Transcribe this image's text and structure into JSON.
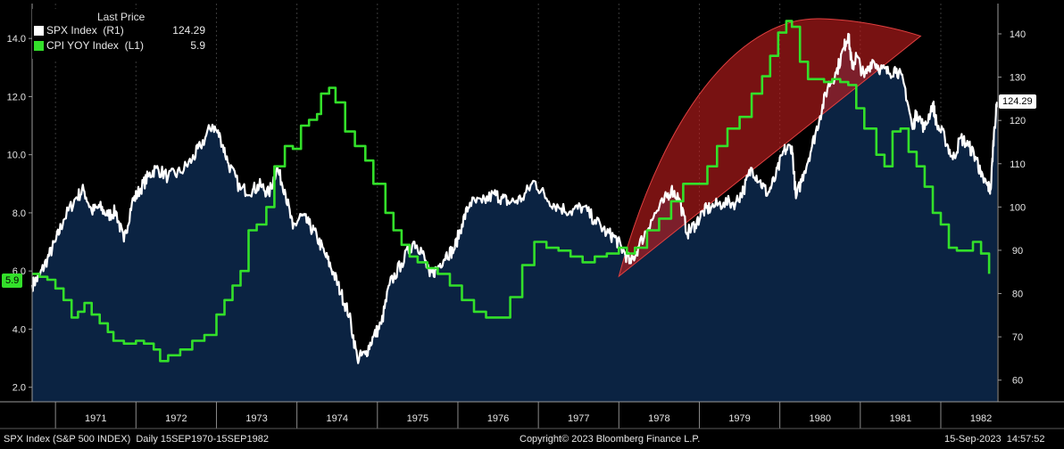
{
  "legend": {
    "header": "Last Price",
    "series": [
      {
        "name": "SPX Index  (R1)",
        "value": "124.29",
        "color": "#ffffff"
      },
      {
        "name": "CPI YOY Index  (L1)",
        "value": "5.9",
        "color": "#33e02a"
      }
    ]
  },
  "tags": {
    "left": "5.9",
    "right": "124.29"
  },
  "footer": {
    "left": "SPX Index (S&P 500 INDEX)  Daily 15SEP1970-15SEP1982",
    "center": "Copyright© 2023 Bloomberg Finance L.P.",
    "right": "15-Sep-2023  14:57:52"
  },
  "colors": {
    "background": "#000000",
    "area_fill": "#0b2342",
    "spx_line": "#ffffff",
    "cpi_line": "#33e02a",
    "highlight": "#c21d1d"
  },
  "chart_data": {
    "type": "line",
    "x_ticks": [
      "1971",
      "1972",
      "1973",
      "1974",
      "1975",
      "1976",
      "1977",
      "1978",
      "1979",
      "1980",
      "1981",
      "1982"
    ],
    "x_range": [
      1970.71,
      1982.71
    ],
    "left_axis": {
      "ticks": [
        "2.0",
        "4.0",
        "6.0",
        "8.0",
        "10.0",
        "12.0",
        "14.0"
      ],
      "range": [
        1.5,
        15.2
      ]
    },
    "right_axis": {
      "ticks": [
        "60",
        "70",
        "80",
        "90",
        "100",
        "110",
        "120",
        "130",
        "140"
      ],
      "range": [
        55,
        147
      ]
    },
    "series": [
      {
        "name": "SPX Index  (R1)",
        "axis": "right",
        "style": "line-area",
        "points": [
          [
            1970.71,
            82
          ],
          [
            1970.8,
            84
          ],
          [
            1970.9,
            88
          ],
          [
            1971.0,
            92
          ],
          [
            1971.1,
            97
          ],
          [
            1971.25,
            102
          ],
          [
            1971.35,
            104
          ],
          [
            1971.45,
            99
          ],
          [
            1971.55,
            100
          ],
          [
            1971.65,
            98
          ],
          [
            1971.75,
            99
          ],
          [
            1971.85,
            92
          ],
          [
            1971.95,
            101
          ],
          [
            1972.05,
            104
          ],
          [
            1972.15,
            107
          ],
          [
            1972.25,
            109
          ],
          [
            1972.4,
            107
          ],
          [
            1972.55,
            108
          ],
          [
            1972.7,
            111
          ],
          [
            1972.8,
            114
          ],
          [
            1972.95,
            119
          ],
          [
            1973.05,
            116
          ],
          [
            1973.15,
            110
          ],
          [
            1973.3,
            104
          ],
          [
            1973.45,
            104
          ],
          [
            1973.55,
            105
          ],
          [
            1973.65,
            103
          ],
          [
            1973.75,
            109
          ],
          [
            1973.85,
            104
          ],
          [
            1973.95,
            95
          ],
          [
            1974.05,
            98
          ],
          [
            1974.15,
            96
          ],
          [
            1974.25,
            93
          ],
          [
            1974.35,
            89
          ],
          [
            1974.45,
            85
          ],
          [
            1974.55,
            80
          ],
          [
            1974.65,
            75
          ],
          [
            1974.75,
            65
          ],
          [
            1974.85,
            66
          ],
          [
            1974.95,
            70
          ],
          [
            1975.05,
            73
          ],
          [
            1975.15,
            82
          ],
          [
            1975.3,
            87
          ],
          [
            1975.45,
            92
          ],
          [
            1975.55,
            90
          ],
          [
            1975.65,
            84
          ],
          [
            1975.75,
            86
          ],
          [
            1975.85,
            89
          ],
          [
            1975.95,
            90
          ],
          [
            1976.05,
            96
          ],
          [
            1976.15,
            101
          ],
          [
            1976.3,
            101
          ],
          [
            1976.45,
            103
          ],
          [
            1976.55,
            102
          ],
          [
            1976.65,
            101
          ],
          [
            1976.8,
            102
          ],
          [
            1976.95,
            106
          ],
          [
            1977.1,
            102
          ],
          [
            1977.25,
            100
          ],
          [
            1977.4,
            99
          ],
          [
            1977.55,
            100
          ],
          [
            1977.7,
            97
          ],
          [
            1977.85,
            94
          ],
          [
            1977.95,
            93
          ],
          [
            1978.05,
            90
          ],
          [
            1978.15,
            87
          ],
          [
            1978.25,
            91
          ],
          [
            1978.4,
            97
          ],
          [
            1978.55,
            101
          ],
          [
            1978.65,
            104
          ],
          [
            1978.75,
            102
          ],
          [
            1978.85,
            94
          ],
          [
            1978.95,
            96
          ],
          [
            1979.05,
            99
          ],
          [
            1979.15,
            100
          ],
          [
            1979.3,
            101
          ],
          [
            1979.45,
            101
          ],
          [
            1979.55,
            104
          ],
          [
            1979.65,
            109
          ],
          [
            1979.75,
            106
          ],
          [
            1979.85,
            103
          ],
          [
            1979.95,
            107
          ],
          [
            1980.05,
            113
          ],
          [
            1980.15,
            114
          ],
          [
            1980.2,
            102
          ],
          [
            1980.3,
            108
          ],
          [
            1980.4,
            114
          ],
          [
            1980.5,
            121
          ],
          [
            1980.6,
            128
          ],
          [
            1980.7,
            131
          ],
          [
            1980.8,
            137
          ],
          [
            1980.85,
            140
          ],
          [
            1980.9,
            132
          ],
          [
            1980.95,
            135
          ],
          [
            1981.05,
            130
          ],
          [
            1981.15,
            134
          ],
          [
            1981.25,
            132
          ],
          [
            1981.35,
            131
          ],
          [
            1981.45,
            132
          ],
          [
            1981.55,
            128
          ],
          [
            1981.65,
            118
          ],
          [
            1981.7,
            122
          ],
          [
            1981.8,
            118
          ],
          [
            1981.9,
            124
          ],
          [
            1981.95,
            119
          ],
          [
            1982.05,
            116
          ],
          [
            1982.15,
            111
          ],
          [
            1982.25,
            116
          ],
          [
            1982.35,
            114
          ],
          [
            1982.45,
            111
          ],
          [
            1982.5,
            107
          ],
          [
            1982.58,
            105
          ],
          [
            1982.62,
            104
          ],
          [
            1982.66,
            117
          ],
          [
            1982.7,
            124.29
          ]
        ]
      },
      {
        "name": "CPI YOY Index  (L1)",
        "axis": "left",
        "style": "step",
        "points": [
          [
            1970.71,
            5.9
          ],
          [
            1970.8,
            5.8
          ],
          [
            1970.9,
            5.7
          ],
          [
            1971.0,
            5.4
          ],
          [
            1971.1,
            5.0
          ],
          [
            1971.2,
            4.4
          ],
          [
            1971.28,
            4.6
          ],
          [
            1971.36,
            4.9
          ],
          [
            1971.45,
            4.5
          ],
          [
            1971.55,
            4.2
          ],
          [
            1971.65,
            3.9
          ],
          [
            1971.72,
            3.6
          ],
          [
            1971.85,
            3.5
          ],
          [
            1972.0,
            3.6
          ],
          [
            1972.1,
            3.5
          ],
          [
            1972.22,
            3.3
          ],
          [
            1972.3,
            2.9
          ],
          [
            1972.4,
            3.1
          ],
          [
            1972.55,
            3.3
          ],
          [
            1972.7,
            3.6
          ],
          [
            1972.85,
            3.8
          ],
          [
            1973.0,
            4.5
          ],
          [
            1973.1,
            5.0
          ],
          [
            1973.2,
            5.5
          ],
          [
            1973.3,
            6.0
          ],
          [
            1973.4,
            7.4
          ],
          [
            1973.5,
            7.6
          ],
          [
            1973.62,
            8.2
          ],
          [
            1973.72,
            9.6
          ],
          [
            1973.85,
            10.3
          ],
          [
            1973.95,
            10.2
          ],
          [
            1974.05,
            11.0
          ],
          [
            1974.15,
            11.2
          ],
          [
            1974.25,
            11.4
          ],
          [
            1974.3,
            12.1
          ],
          [
            1974.4,
            12.3
          ],
          [
            1974.48,
            11.8
          ],
          [
            1974.6,
            10.8
          ],
          [
            1974.72,
            10.3
          ],
          [
            1974.85,
            9.8
          ],
          [
            1974.95,
            9.0
          ],
          [
            1975.1,
            8.0
          ],
          [
            1975.2,
            7.4
          ],
          [
            1975.3,
            6.9
          ],
          [
            1975.4,
            6.5
          ],
          [
            1975.5,
            6.3
          ],
          [
            1975.62,
            6.1
          ],
          [
            1975.75,
            5.9
          ],
          [
            1975.9,
            5.5
          ],
          [
            1976.05,
            5.0
          ],
          [
            1976.2,
            4.6
          ],
          [
            1976.35,
            4.4
          ],
          [
            1976.5,
            4.4
          ],
          [
            1976.65,
            5.1
          ],
          [
            1976.8,
            6.2
          ],
          [
            1976.95,
            7.0
          ],
          [
            1977.1,
            6.8
          ],
          [
            1977.25,
            6.7
          ],
          [
            1977.4,
            6.5
          ],
          [
            1977.55,
            6.3
          ],
          [
            1977.7,
            6.5
          ],
          [
            1977.85,
            6.6
          ],
          [
            1978.0,
            6.8
          ],
          [
            1978.1,
            6.6
          ],
          [
            1978.2,
            6.8
          ],
          [
            1978.35,
            7.4
          ],
          [
            1978.5,
            7.8
          ],
          [
            1978.65,
            8.4
          ],
          [
            1978.8,
            9.0
          ],
          [
            1978.95,
            9.0
          ],
          [
            1979.1,
            9.6
          ],
          [
            1979.22,
            10.3
          ],
          [
            1979.35,
            10.9
          ],
          [
            1979.5,
            11.3
          ],
          [
            1979.65,
            12.1
          ],
          [
            1979.78,
            12.7
          ],
          [
            1979.88,
            13.4
          ],
          [
            1979.98,
            14.2
          ],
          [
            1980.08,
            14.6
          ],
          [
            1980.15,
            14.4
          ],
          [
            1980.25,
            13.2
          ],
          [
            1980.35,
            12.6
          ],
          [
            1980.45,
            12.6
          ],
          [
            1980.55,
            12.5
          ],
          [
            1980.65,
            12.6
          ],
          [
            1980.75,
            12.5
          ],
          [
            1980.85,
            12.4
          ],
          [
            1980.95,
            11.6
          ],
          [
            1981.05,
            10.9
          ],
          [
            1981.2,
            10.0
          ],
          [
            1981.3,
            9.6
          ],
          [
            1981.4,
            10.8
          ],
          [
            1981.5,
            10.9
          ],
          [
            1981.6,
            10.1
          ],
          [
            1981.7,
            9.6
          ],
          [
            1981.8,
            8.9
          ],
          [
            1981.9,
            8.0
          ],
          [
            1982.0,
            7.6
          ],
          [
            1982.1,
            6.8
          ],
          [
            1982.2,
            6.7
          ],
          [
            1982.3,
            6.7
          ],
          [
            1982.4,
            7.0
          ],
          [
            1982.5,
            6.6
          ],
          [
            1982.6,
            5.9
          ]
        ]
      }
    ]
  }
}
